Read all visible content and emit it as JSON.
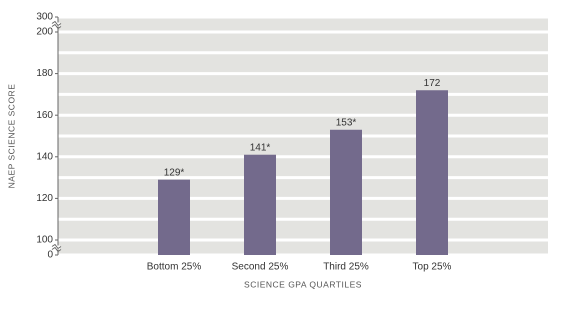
{
  "chart_data": {
    "type": "bar",
    "categories": [
      "Bottom 25%",
      "Second 25%",
      "Third 25%",
      "Top 25%"
    ],
    "values": [
      129,
      141,
      153,
      172
    ],
    "value_labels": [
      "129*",
      "141*",
      "153*",
      "172"
    ],
    "color": "#736a8c",
    "ylabel": "NAEP SCIENCE SCORE",
    "xlabel": "SCIENCE GPA QUARTILES",
    "ylim": [
      0,
      300
    ],
    "yticks": [
      0,
      100,
      120,
      140,
      160,
      180,
      200,
      300
    ],
    "yminor_ticks": [
      110,
      130,
      150,
      170,
      190
    ],
    "axis_breaks": [
      [
        0,
        100
      ],
      [
        200,
        300
      ]
    ],
    "grid": true
  }
}
